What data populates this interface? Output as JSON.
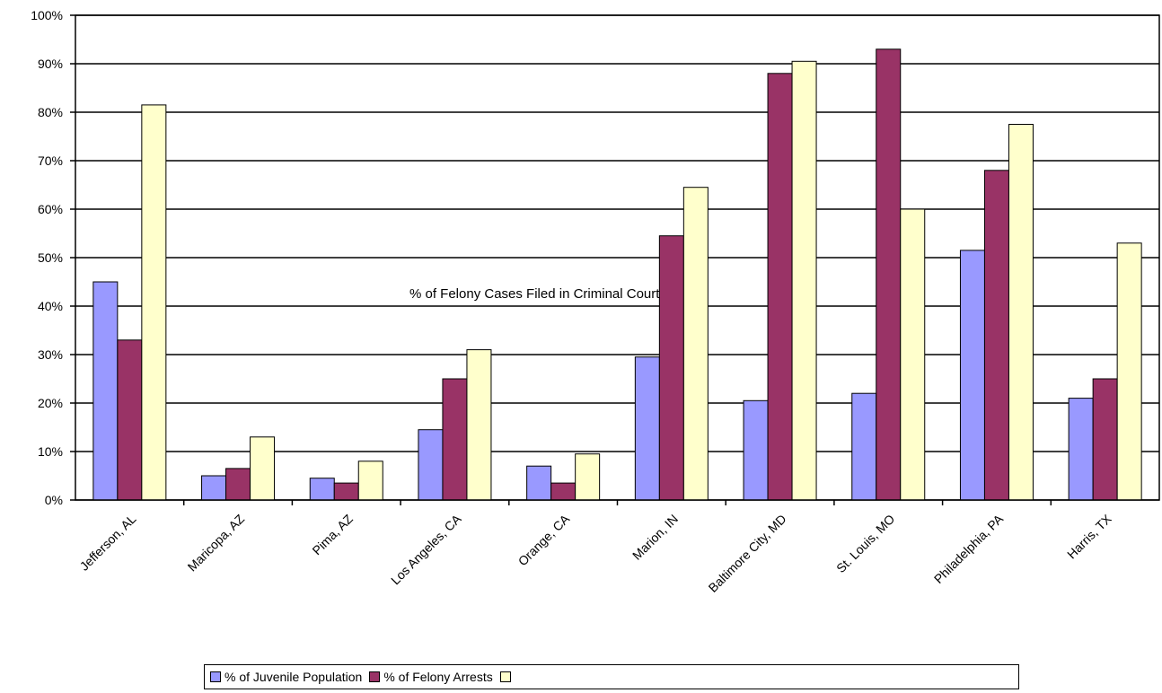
{
  "chart_data": {
    "type": "bar",
    "categories": [
      "Jefferson, AL",
      "Maricopa, AZ",
      "Pima, AZ",
      "Los Angeles, CA",
      "Orange, CA",
      "Marion, IN",
      "Baltimore City, MD",
      "St. Louis, MO",
      "Philadelphia, PA",
      "Harris, TX"
    ],
    "series": [
      {
        "name": "% of Juvenile Population",
        "color": "#9999FF",
        "values": [
          45,
          5,
          4.5,
          14.5,
          7,
          29.5,
          20.5,
          22,
          51.5,
          21
        ]
      },
      {
        "name": "% of Felony Arrests",
        "color": "#993366",
        "values": [
          33,
          6.5,
          3.5,
          25,
          3.5,
          54.5,
          88,
          93,
          68,
          25
        ]
      },
      {
        "name": "",
        "color": "#FFFFCC",
        "values": [
          81.5,
          13,
          8,
          31,
          9.5,
          64.5,
          90.5,
          60,
          77.5,
          53
        ]
      }
    ],
    "annotation": "% of Felony Cases Filed in Criminal Court",
    "ylim": [
      0,
      100
    ],
    "yticks": [
      "0%",
      "10%",
      "20%",
      "30%",
      "40%",
      "50%",
      "60%",
      "70%",
      "80%",
      "90%",
      "100%"
    ],
    "grid": true,
    "legend_position": "bottom"
  }
}
